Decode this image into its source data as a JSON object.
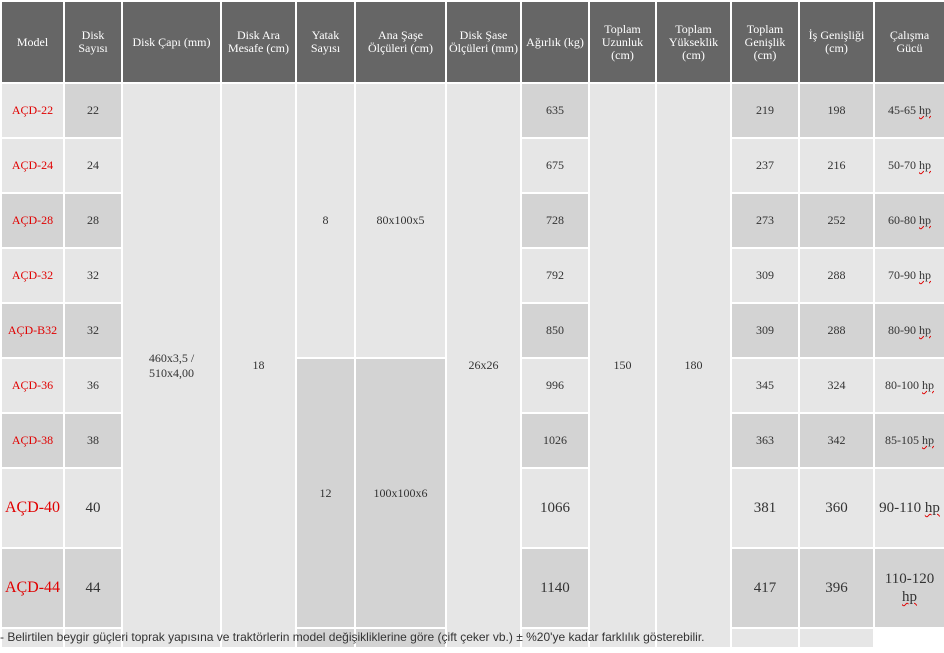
{
  "headers": {
    "model": "Model",
    "disk_count": "Disk Sayısı",
    "disk_diameter": "Disk Çapı (mm)",
    "disk_spacing": "Disk Ara Mesafe (cm)",
    "bearing_count": "Yatak Sayısı",
    "main_frame": "Ana Şaşe Ölçüleri (cm)",
    "disk_frame": "Disk Şase Ölçüleri (mm)",
    "weight": "Ağırlık (kg)",
    "total_length": "Toplam Uzunluk (cm)",
    "total_height": "Toplam Yükseklik (cm)",
    "total_width": "Toplam Genişlik (cm)",
    "work_width": "İş Genişliği (cm)",
    "power": "Çalışma Gücü"
  },
  "shared": {
    "disk_diameter": "460x3,5 / 510x4,00",
    "disk_spacing": "18",
    "bearing_small": "8",
    "bearing_large": "12",
    "frame_small": "80x100x5",
    "frame_large": "100x100x6",
    "disk_frame": "26x26",
    "total_length": "150",
    "total_height": "180"
  },
  "rows": [
    {
      "model": "AÇD-22",
      "disks": "22",
      "weight": "635",
      "width": "219",
      "work": "198",
      "power_num": "45-65",
      "power_unit": "hp"
    },
    {
      "model": "AÇD-24",
      "disks": "24",
      "weight": "675",
      "width": "237",
      "work": "216",
      "power_num": "50-70",
      "power_unit": "hp"
    },
    {
      "model": "AÇD-28",
      "disks": "28",
      "weight": "728",
      "width": "273",
      "work": "252",
      "power_num": "60-80",
      "power_unit": "hp"
    },
    {
      "model": "AÇD-32",
      "disks": "32",
      "weight": "792",
      "width": "309",
      "work": "288",
      "power_num": "70-90",
      "power_unit": "hp"
    },
    {
      "model": "AÇD-B32",
      "disks": "32",
      "weight": "850",
      "width": "309",
      "work": "288",
      "power_num": "80-90",
      "power_unit": "hp"
    },
    {
      "model": "AÇD-36",
      "disks": "36",
      "weight": "996",
      "width": "345",
      "work": "324",
      "power_num": "80-100",
      "power_unit": "hp"
    },
    {
      "model": "AÇD-38",
      "disks": "38",
      "weight": "1026",
      "width": "363",
      "work": "342",
      "power_num": "85-105",
      "power_unit": "hp"
    },
    {
      "model": "AÇD-40",
      "disks": "40",
      "weight": "1066",
      "width": "381",
      "work": "360",
      "power_num": "90-110",
      "power_unit": "hp"
    },
    {
      "model": "AÇD-44",
      "disks": "44",
      "weight": "1140",
      "width": "417",
      "work": "396",
      "power_num": "110-120",
      "power_unit": "hp"
    }
  ],
  "footnote": "- Belirtilen beygir güçleri toprak yapısına ve traktörlerin model değişikliklerine göre (çift çeker vb.) ± %20'ye kadar farklılık gösterebilir."
}
